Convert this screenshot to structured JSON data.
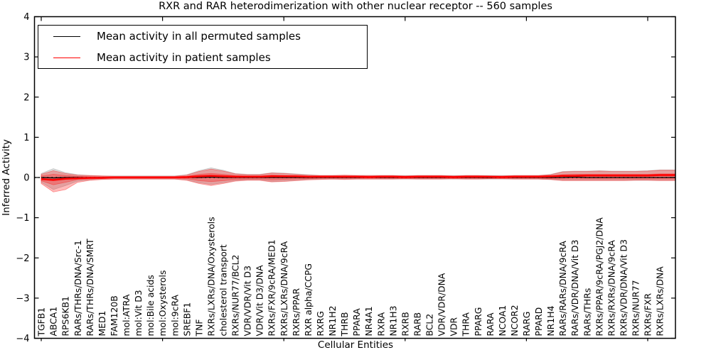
{
  "figure": {
    "title": "RXR and RAR heterodimerization with other nuclear receptor -- 560 samples",
    "xlabel": "Cellular Entities",
    "ylabel": "Inferred Activity"
  },
  "legend": {
    "entries": [
      {
        "label": "Mean activity in all permuted samples",
        "color": "#000000"
      },
      {
        "label": "Mean activity in patient samples",
        "color": "#ff0000"
      }
    ]
  },
  "chart_data": {
    "type": "line",
    "title": "RXR and RAR heterodimerization with other nuclear receptor -- 560 samples",
    "xlabel": "Cellular Entities",
    "ylabel": "Inferred Activity",
    "ylim": [
      -4,
      4
    ],
    "yticks": [
      -4,
      -3,
      -2,
      -1,
      0,
      1,
      2,
      3,
      4
    ],
    "xtick_indices": [
      0,
      10,
      20,
      30,
      40,
      50
    ],
    "grid": false,
    "legend_position": "upper left",
    "zero_line": {
      "style": "dotted",
      "color": "#000000",
      "y": 0
    },
    "colors": {
      "patient": "#ff0000",
      "permuted": "#000000",
      "patient_band": "#ff0000",
      "permuted_band": "#999999"
    },
    "categories": [
      "TGFB1",
      "ABCA1",
      "RPS6KB1",
      "RARs/THRs/DNA/Src-1",
      "RARs/THRs/DNA/SMRT",
      "MED1",
      "FAM120B",
      "mol:ATRA",
      "mol:Vit D3",
      "mol:Bile acids",
      "mol:Oxysterols",
      "mol:9cRA",
      "SREBF1",
      "TNF",
      "RXRs/LXRs/DNA/Oxysterols",
      "cholesterol transport",
      "RXRs/NUR77/BCL2",
      "VDR/VDR/Vit D3",
      "VDR/Vit D3/DNA",
      "RXRs/FXR/9cRA/MED1",
      "RXRs/LXRs/DNA/9cRA",
      "RXRs/PPAR",
      "RXR alpha/CCPG",
      "RXRG",
      "NR1H2",
      "THRB",
      "PPARA",
      "NR4A1",
      "RXRA",
      "NR1H3",
      "RXRB",
      "RARB",
      "BCL2",
      "VDR/VDR/DNA",
      "VDR",
      "THRA",
      "PPARG",
      "RARA",
      "NCOA1",
      "NCOR2",
      "RARG",
      "PPARD",
      "NR1H4",
      "RARs/RARs/DNA/9cRA",
      "RARs/VDR/DNA/Vit D3",
      "RARs/THRs",
      "RXRs/PPAR/9cRA/PGJ2/DNA",
      "RXRs/RXRs/DNA/9cRA",
      "RXRs/VDR/DNA/Vit D3",
      "RXRs/NUR77",
      "RXRs/FXR",
      "RXRs/LXRs/DNA"
    ],
    "series": [
      {
        "name": "Mean activity in all permuted samples",
        "color": "#000000",
        "values": [
          0,
          -0.01,
          0,
          0,
          0,
          0,
          0,
          0,
          0,
          0,
          0,
          0,
          0,
          0,
          0.01,
          0,
          0,
          0,
          0,
          0,
          0,
          0,
          0,
          0,
          0,
          0,
          0,
          0,
          0,
          0,
          0,
          0,
          0,
          0,
          0,
          0,
          0,
          0,
          0,
          0,
          0,
          0,
          0,
          0,
          0.01,
          0,
          0,
          0,
          0,
          0,
          0,
          0
        ]
      },
      {
        "name": "Mean activity in patient samples",
        "color": "#ff0000",
        "values": [
          -0.04,
          -0.06,
          -0.03,
          -0.02,
          -0.01,
          -0.01,
          0,
          0,
          0,
          0,
          0,
          0,
          0.01,
          0.03,
          0.04,
          0.03,
          0.02,
          0.02,
          0.02,
          0.03,
          0.03,
          0.03,
          0.02,
          0.02,
          0.02,
          0.02,
          0.02,
          0.01,
          0.02,
          0.02,
          0.01,
          0.02,
          0.02,
          0.02,
          0.01,
          0.02,
          0.02,
          0.02,
          0.01,
          0.02,
          0.02,
          0.02,
          0.03,
          0.04,
          0.04,
          0.05,
          0.05,
          0.05,
          0.05,
          0.05,
          0.05,
          0.06
        ]
      }
    ],
    "bands": [
      {
        "name": "permuted-std",
        "color": "#999999",
        "opacity": 0.35,
        "upper": [
          0.1,
          0.22,
          0.12,
          0.07,
          0.05,
          0.04,
          0.04,
          0.04,
          0.04,
          0.04,
          0.04,
          0.04,
          0.07,
          0.17,
          0.24,
          0.18,
          0.1,
          0.08,
          0.08,
          0.12,
          0.11,
          0.09,
          0.07,
          0.05,
          0.05,
          0.05,
          0.05,
          0.05,
          0.05,
          0.05,
          0.05,
          0.05,
          0.05,
          0.05,
          0.05,
          0.05,
          0.05,
          0.05,
          0.05,
          0.05,
          0.05,
          0.05,
          0.08,
          0.15,
          0.16,
          0.16,
          0.17,
          0.16,
          0.16,
          0.16,
          0.17,
          0.19
        ],
        "lower": [
          -0.12,
          -0.3,
          -0.2,
          -0.09,
          -0.06,
          -0.04,
          -0.04,
          -0.04,
          -0.04,
          -0.04,
          -0.04,
          -0.04,
          -0.06,
          -0.13,
          -0.17,
          -0.13,
          -0.08,
          -0.06,
          -0.06,
          -0.1,
          -0.09,
          -0.07,
          -0.05,
          -0.04,
          -0.04,
          -0.04,
          -0.04,
          -0.04,
          -0.04,
          -0.04,
          -0.04,
          -0.04,
          -0.04,
          -0.04,
          -0.04,
          -0.04,
          -0.04,
          -0.04,
          -0.04,
          -0.04,
          -0.04,
          -0.04,
          -0.05,
          -0.07,
          -0.07,
          -0.07,
          -0.07,
          -0.07,
          -0.07,
          -0.07,
          -0.07,
          -0.07
        ]
      },
      {
        "name": "patient-std",
        "color": "#ff0000",
        "opacity": 0.27,
        "upper": [
          0.08,
          0.17,
          0.1,
          0.06,
          0.05,
          0.04,
          0.03,
          0.03,
          0.03,
          0.03,
          0.03,
          0.03,
          0.06,
          0.15,
          0.21,
          0.16,
          0.09,
          0.07,
          0.07,
          0.11,
          0.1,
          0.08,
          0.06,
          0.05,
          0.05,
          0.06,
          0.05,
          0.05,
          0.05,
          0.05,
          0.04,
          0.05,
          0.05,
          0.05,
          0.04,
          0.05,
          0.05,
          0.04,
          0.04,
          0.05,
          0.05,
          0.05,
          0.07,
          0.14,
          0.15,
          0.15,
          0.16,
          0.15,
          0.15,
          0.15,
          0.16,
          0.18
        ],
        "lower": [
          -0.15,
          -0.36,
          -0.3,
          -0.12,
          -0.07,
          -0.05,
          -0.04,
          -0.04,
          -0.04,
          -0.04,
          -0.04,
          -0.04,
          -0.07,
          -0.15,
          -0.2,
          -0.15,
          -0.09,
          -0.07,
          -0.07,
          -0.11,
          -0.1,
          -0.08,
          -0.06,
          -0.05,
          -0.04,
          -0.05,
          -0.04,
          -0.04,
          -0.04,
          -0.04,
          -0.03,
          -0.04,
          -0.04,
          -0.04,
          -0.03,
          -0.04,
          -0.04,
          -0.03,
          -0.03,
          -0.04,
          -0.04,
          -0.04,
          -0.05,
          -0.08,
          -0.08,
          -0.08,
          -0.08,
          -0.08,
          -0.08,
          -0.07,
          -0.07,
          -0.08
        ]
      },
      {
        "name": "patient-inner",
        "color": "#ff0000",
        "opacity": 0.25,
        "upper": [
          0.04,
          0.08,
          0.05,
          0.03,
          0.02,
          0.02,
          0.02,
          0.02,
          0.02,
          0.02,
          0.02,
          0.02,
          0.03,
          0.08,
          0.1,
          0.08,
          0.05,
          0.04,
          0.04,
          0.06,
          0.05,
          0.04,
          0.03,
          0.03,
          0.03,
          0.03,
          0.03,
          0.03,
          0.03,
          0.03,
          0.03,
          0.03,
          0.03,
          0.03,
          0.03,
          0.03,
          0.03,
          0.03,
          0.03,
          0.03,
          0.03,
          0.03,
          0.04,
          0.07,
          0.08,
          0.08,
          0.08,
          0.08,
          0.08,
          0.08,
          0.08,
          0.09
        ],
        "lower": [
          -0.08,
          -0.18,
          -0.12,
          -0.05,
          -0.04,
          -0.02,
          -0.02,
          -0.02,
          -0.02,
          -0.02,
          -0.02,
          -0.02,
          -0.03,
          -0.08,
          -0.1,
          -0.08,
          -0.05,
          -0.04,
          -0.04,
          -0.06,
          -0.05,
          -0.04,
          -0.03,
          -0.02,
          -0.02,
          -0.02,
          -0.02,
          -0.02,
          -0.02,
          -0.02,
          -0.02,
          -0.02,
          -0.02,
          -0.02,
          -0.02,
          -0.02,
          -0.02,
          -0.02,
          -0.02,
          -0.02,
          -0.02,
          -0.02,
          -0.03,
          -0.04,
          -0.04,
          -0.04,
          -0.04,
          -0.04,
          -0.04,
          -0.04,
          -0.04,
          -0.04
        ]
      }
    ]
  }
}
